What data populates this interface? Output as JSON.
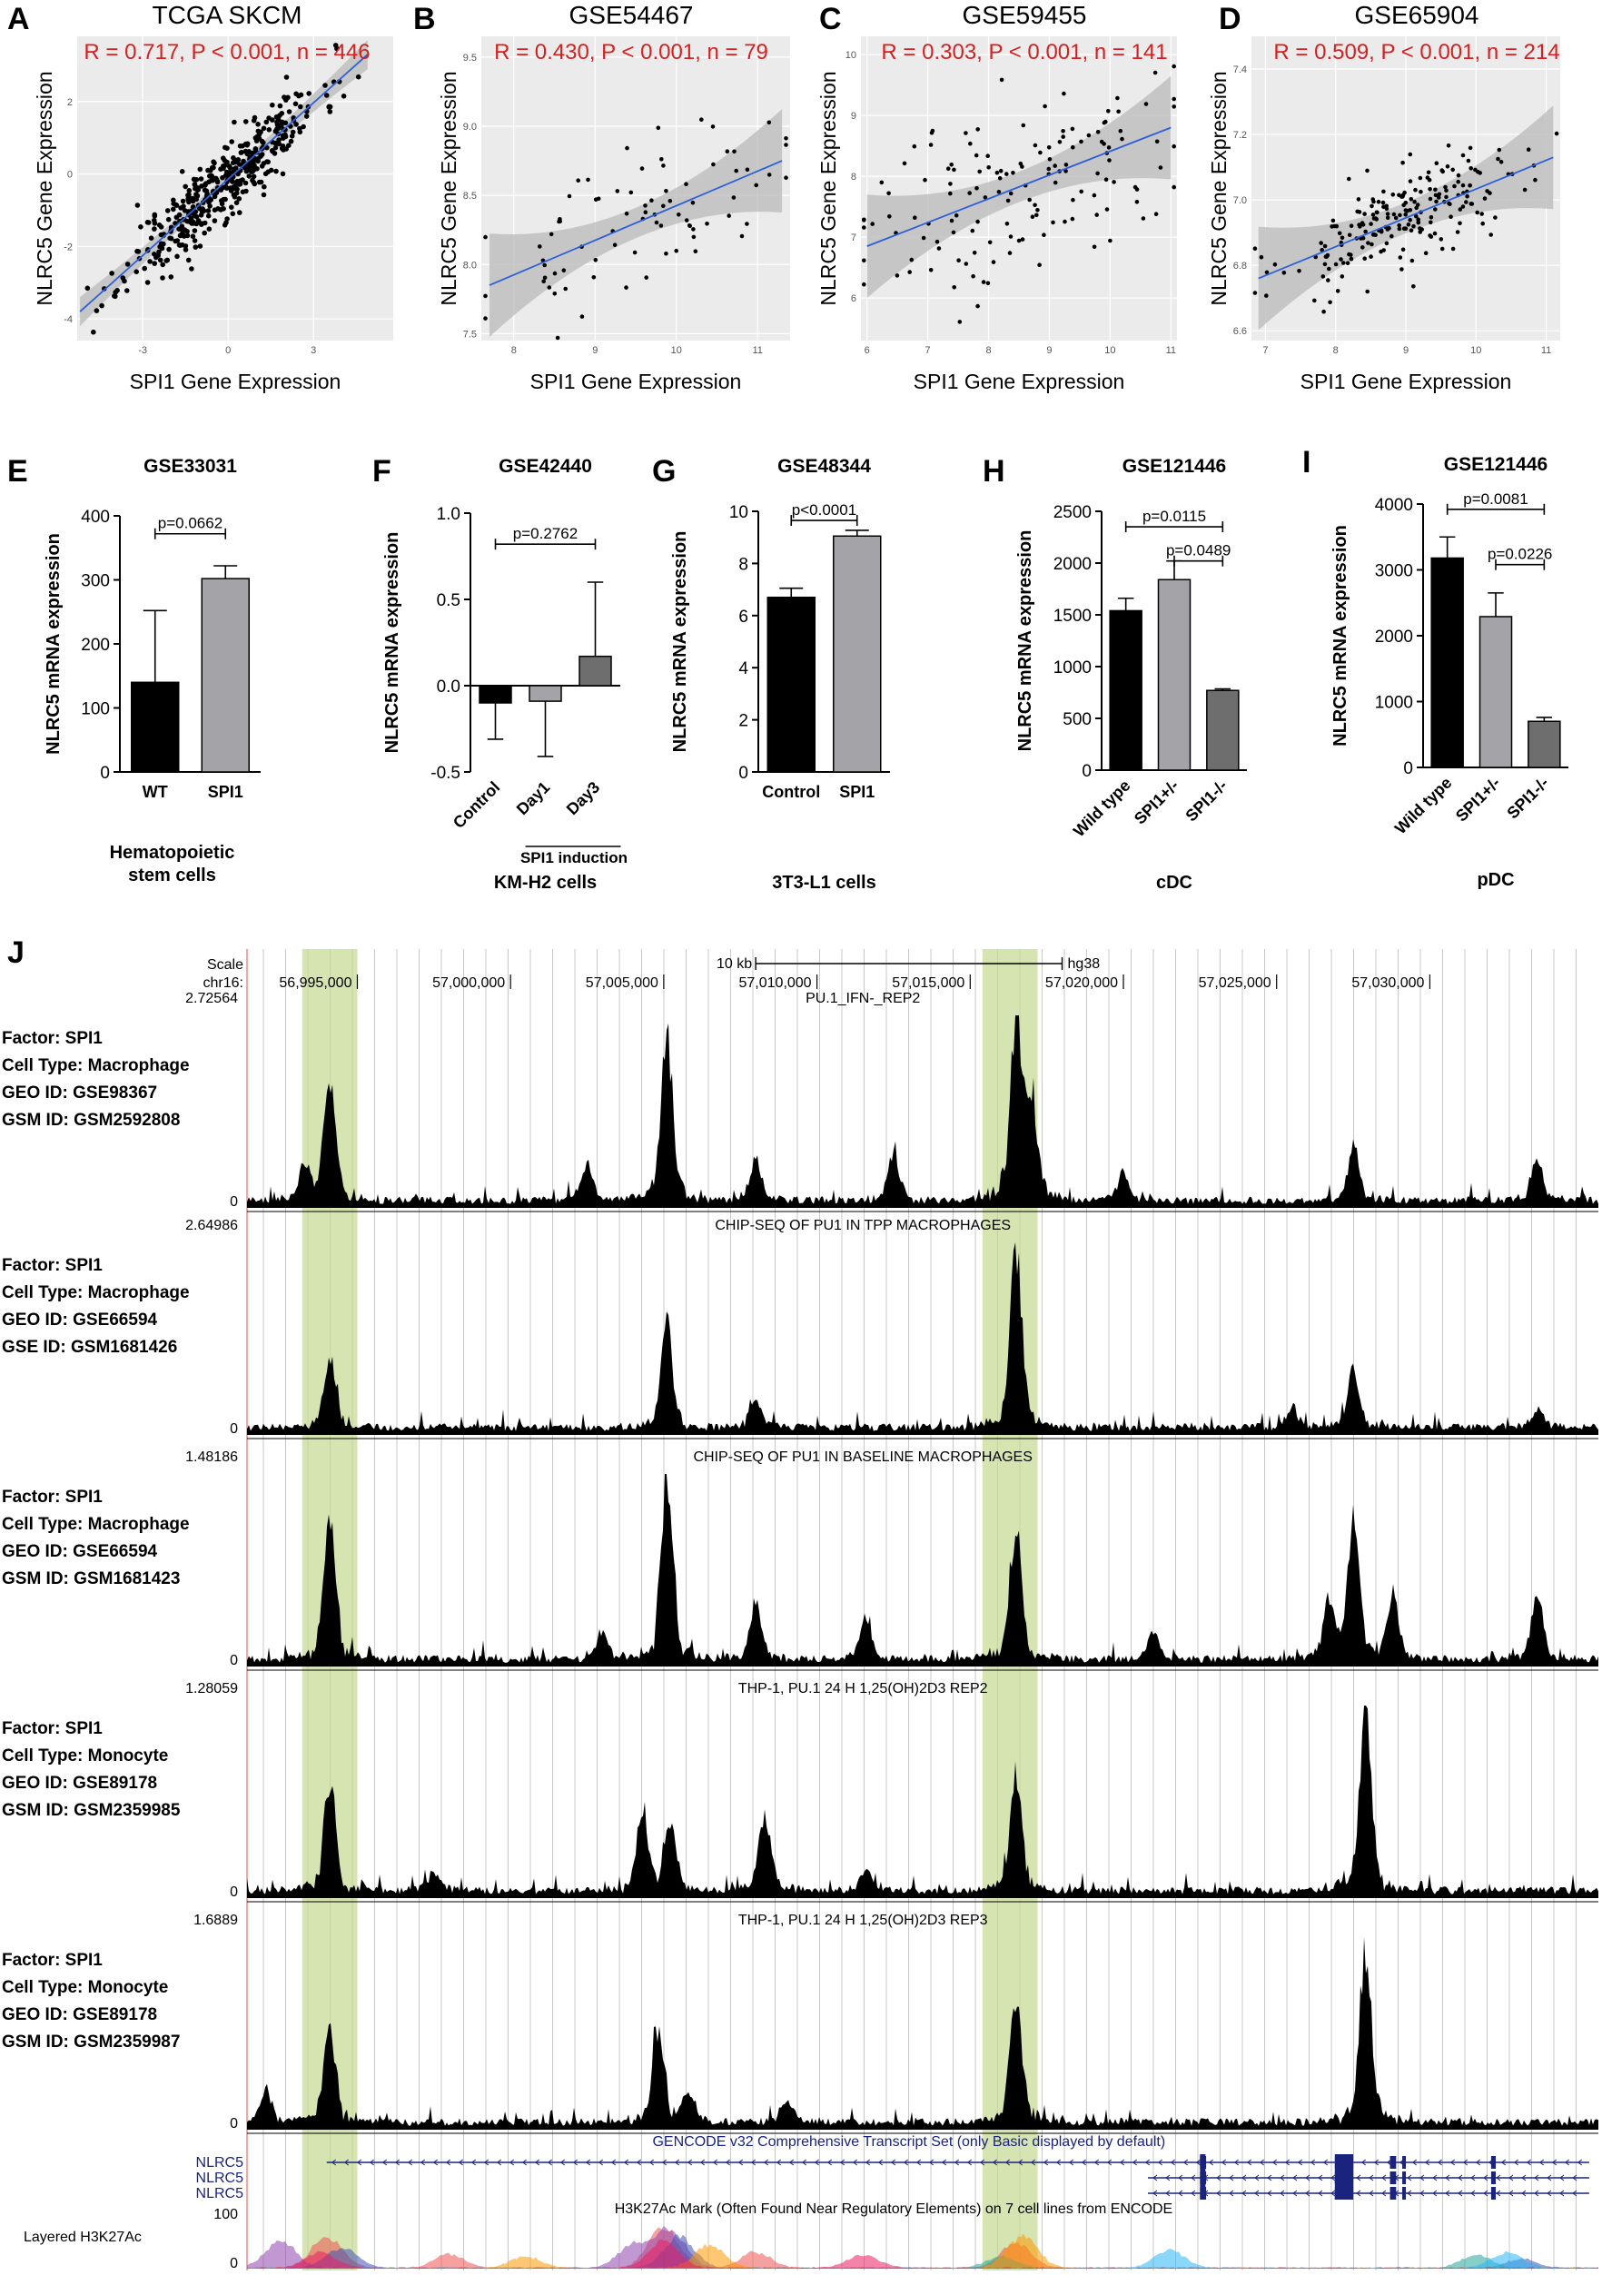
{
  "panels": {
    "A": "A",
    "B": "B",
    "C": "C",
    "D": "D",
    "E": "E",
    "F": "F",
    "G": "G",
    "H": "H",
    "I": "I",
    "J": "J"
  },
  "chart_data": [
    {
      "id": "A",
      "type": "scatter",
      "title": "TCGA SKCM",
      "stat": "R = 0.717, P < 0.001, n = 446",
      "xlabel": "SPI1 Gene Expression",
      "ylabel": "NLRC5 Gene Expression",
      "xlim": [
        -5.3,
        5.8
      ],
      "ylim": [
        -4.6,
        3.8
      ],
      "xticks": [
        "-3",
        "0",
        "3"
      ],
      "xtick_values": [
        -3,
        0,
        3
      ],
      "yticks": [
        "-4",
        "-2",
        "0",
        "2"
      ],
      "ytick_values": [
        -4,
        -2,
        0,
        2
      ],
      "fit": [
        [
          -5.2,
          -3.8
        ],
        [
          4.9,
          3.3
        ]
      ],
      "n_points": 446,
      "seed": 11,
      "spread_x": 1.7,
      "noise": 0.95
    },
    {
      "id": "B",
      "type": "scatter",
      "title": "GSE54467",
      "stat": "R = 0.430, P < 0.001, n = 79",
      "xlabel": "SPI1 Gene Expression",
      "ylabel": "NLRC5 Gene Expression",
      "xlim": [
        7.6,
        11.4
      ],
      "ylim": [
        7.45,
        9.65
      ],
      "xticks": [
        "8",
        "9",
        "10",
        "11"
      ],
      "xtick_values": [
        8,
        9,
        10,
        11
      ],
      "yticks": [
        "7.5",
        "8.0",
        "8.5",
        "9.0",
        "9.5"
      ],
      "ytick_values": [
        7.5,
        8.0,
        8.5,
        9.0,
        9.5
      ],
      "fit": [
        [
          7.7,
          7.85
        ],
        [
          11.3,
          8.75
        ]
      ],
      "n_points": 79,
      "seed": 23,
      "spread_x": 0.9,
      "noise": 0.45
    },
    {
      "id": "C",
      "type": "scatter",
      "title": "GSE59455",
      "stat": "R = 0.303, P < 0.001, n = 141",
      "xlabel": "SPI1 Gene Expression",
      "ylabel": "NLRC5 Gene Expression",
      "xlim": [
        5.9,
        11.1
      ],
      "ylim": [
        5.3,
        10.3
      ],
      "xticks": [
        "6",
        "7",
        "8",
        "9",
        "10",
        "11"
      ],
      "xtick_values": [
        6,
        7,
        8,
        9,
        10,
        11
      ],
      "yticks": [
        "6",
        "7",
        "8",
        "9",
        "10"
      ],
      "ytick_values": [
        6,
        7,
        8,
        9,
        10
      ],
      "fit": [
        [
          6.0,
          6.85
        ],
        [
          11.0,
          8.8
        ]
      ],
      "n_points": 141,
      "seed": 37,
      "spread_x": 1.3,
      "noise": 1.4
    },
    {
      "id": "D",
      "type": "scatter",
      "title": "GSE65904",
      "stat": "R = 0.509, P < 0.001, n = 214",
      "xlabel": "SPI1 Gene Expression",
      "ylabel": "NLRC5 Gene Expression",
      "xlim": [
        6.8,
        11.2
      ],
      "ylim": [
        6.57,
        7.5
      ],
      "xticks": [
        "7",
        "8",
        "9",
        "10",
        "11"
      ],
      "xtick_values": [
        7,
        8,
        9,
        10,
        11
      ],
      "yticks": [
        "6.6",
        "6.8",
        "7.0",
        "7.2",
        "7.4"
      ],
      "ytick_values": [
        6.6,
        6.8,
        7.0,
        7.2,
        7.4
      ],
      "fit": [
        [
          6.9,
          6.76
        ],
        [
          11.1,
          7.13
        ]
      ],
      "n_points": 214,
      "seed": 53,
      "spread_x": 0.9,
      "noise": 0.14
    },
    {
      "id": "E",
      "type": "bar",
      "title": "GSE33031",
      "ylabel": "NLRC5 mRNA expression",
      "ylim": [
        0,
        400
      ],
      "yticks": [
        0,
        100,
        200,
        300,
        400
      ],
      "categories": [
        "WT",
        "SPI1"
      ],
      "values": [
        140,
        302
      ],
      "errors": [
        112,
        20
      ],
      "colors": [
        "#000000",
        "#a3a3a8"
      ],
      "comparisons": [
        {
          "a": 0,
          "b": 1,
          "label": "p=0.0662",
          "y": 372
        }
      ],
      "group_label": "",
      "cell": "Hematopoietic stem cells",
      "cell_lines": [
        "Hematopoietic",
        "stem cells"
      ],
      "rotated_labels": false
    },
    {
      "id": "F",
      "type": "bar",
      "title": "GSE42440",
      "ylabel": "NLRC5 mRNA expression",
      "ylim": [
        -0.5,
        1.0
      ],
      "yticks": [
        "-0.5",
        "0.0",
        "0.5",
        "1.0"
      ],
      "ytick_values": [
        -0.5,
        0.0,
        0.5,
        1.0
      ],
      "categories": [
        "Control",
        "Day1",
        "Day3"
      ],
      "values": [
        -0.1,
        -0.09,
        0.17
      ],
      "errors": [
        0.21,
        0.32,
        0.43
      ],
      "colors": [
        "#000000",
        "#a3a3a8",
        "#6e6e6e"
      ],
      "comparisons": [
        {
          "a": 0,
          "b": 2,
          "label": "p=0.2762",
          "y": 0.82
        }
      ],
      "group_label": "SPI1 induction",
      "cell": "KM-H2 cells",
      "cell_lines": [
        "KM-H2 cells"
      ],
      "rotated_labels": true
    },
    {
      "id": "G",
      "type": "bar",
      "title": "GSE48344",
      "ylabel": "NLRC5 mRNA expression",
      "ylim": [
        0,
        10
      ],
      "yticks": [
        0,
        2,
        4,
        6,
        8,
        10
      ],
      "categories": [
        "Control",
        "SPI1"
      ],
      "values": [
        6.7,
        9.05
      ],
      "errors": [
        0.35,
        0.22
      ],
      "colors": [
        "#000000",
        "#a3a3a8"
      ],
      "comparisons": [
        {
          "a": 0,
          "b": 1,
          "label": "p<0.0001",
          "y": 9.65
        }
      ],
      "group_label": "",
      "cell": "3T3-L1 cells",
      "cell_lines": [
        "3T3-L1 cells"
      ],
      "rotated_labels": false
    },
    {
      "id": "H",
      "type": "bar",
      "title": "GSE121446",
      "ylabel": "NLRC5 mRNA expression",
      "ylim": [
        0,
        2500
      ],
      "yticks": [
        0,
        500,
        1000,
        1500,
        2000,
        2500
      ],
      "categories": [
        "Wild type",
        "SPI1+/-",
        "SPI1-/-"
      ],
      "values": [
        1540,
        1840,
        770
      ],
      "errors": [
        120,
        180,
        15
      ],
      "colors": [
        "#000000",
        "#a3a3a8",
        "#6e6e6e"
      ],
      "comparisons": [
        {
          "a": 0,
          "b": 2,
          "label": "p=0.0115",
          "y": 2350
        },
        {
          "a": 1,
          "b": 2,
          "label": "p=0.0489",
          "y": 2020
        }
      ],
      "group_label": "",
      "cell": "cDC",
      "cell_lines": [
        "cDC"
      ],
      "rotated_labels": true
    },
    {
      "id": "I",
      "type": "bar",
      "title": "GSE121446",
      "ylabel": "NLRC5 mRNA expression",
      "ylim": [
        0,
        4000
      ],
      "yticks": [
        0,
        1000,
        2000,
        3000,
        4000
      ],
      "categories": [
        "Wild type",
        "SPI1+/-",
        "SPI1-/-"
      ],
      "values": [
        3180,
        2290,
        700
      ],
      "errors": [
        320,
        360,
        60
      ],
      "colors": [
        "#000000",
        "#a3a3a8",
        "#6e6e6e"
      ],
      "comparisons": [
        {
          "a": 0,
          "b": 2,
          "label": "p=0.0081",
          "y": 3920
        },
        {
          "a": 1,
          "b": 2,
          "label": "p=0.0226",
          "y": 3080
        }
      ],
      "group_label": "",
      "cell": "pDC",
      "cell_lines": [
        "pDC"
      ],
      "rotated_labels": true
    }
  ],
  "browser": {
    "scale_label": "Scale",
    "chrom_label": "chr16:",
    "scale_bar": "10 kb",
    "assembly": "hg38",
    "coords": [
      "56,995,000",
      "57,000,000",
      "57,005,000",
      "57,010,000",
      "57,015,000",
      "57,020,000",
      "57,025,000",
      "57,030,000"
    ],
    "coord_values": [
      56995000,
      57000000,
      57005000,
      57010000,
      57015000,
      57020000,
      57025000,
      57030000
    ],
    "genome_range": [
      56991400,
      57035500
    ],
    "highlights": [
      [
        56993200,
        56995000
      ],
      [
        57015400,
        57017200
      ]
    ],
    "tracks": [
      {
        "ymax": "2.72564",
        "ymin": "0",
        "title": "PU.1_IFN-_REP2",
        "factor": "Factor: SPI1",
        "cell_type": "Cell Type: Macrophage",
        "geo": "GEO ID: GSE98367",
        "gsm": "GSM ID: GSM2592808",
        "peaks": [
          [
            56994100,
            0.68
          ],
          [
            57005100,
            0.92
          ],
          [
            57016500,
            1.0
          ],
          [
            56993300,
            0.18
          ],
          [
            57002500,
            0.2
          ],
          [
            57008000,
            0.22
          ],
          [
            57012500,
            0.25
          ],
          [
            57017000,
            0.55
          ],
          [
            57027500,
            0.3
          ],
          [
            57033500,
            0.22
          ],
          [
            57020000,
            0.15
          ]
        ]
      },
      {
        "ymax": "2.64986",
        "ymin": "0",
        "title": "CHIP-SEQ OF PU1 IN TPP MACROPHAGES",
        "factor": "Factor: SPI1",
        "cell_type": "Cell Type: Macrophage",
        "geo": "GEO ID: GSE66594",
        "gsm": "GSE ID: GSM1681426",
        "peaks": [
          [
            56994100,
            0.38
          ],
          [
            57005100,
            0.58
          ],
          [
            57008000,
            0.15
          ],
          [
            57016500,
            1.0
          ],
          [
            57027500,
            0.3
          ],
          [
            57025500,
            0.12
          ],
          [
            57033500,
            0.1
          ]
        ]
      },
      {
        "ymax": "1.48186",
        "ymin": "0",
        "title": "CHIP-SEQ OF PU1 IN BASELINE MACROPHAGES",
        "factor": "Factor: SPI1",
        "cell_type": "Cell Type: Macrophage",
        "geo": "GEO ID: GSE66594",
        "gsm": "GSM ID: GSM1681423",
        "peaks": [
          [
            56994100,
            0.8
          ],
          [
            57005100,
            1.0
          ],
          [
            57008000,
            0.3
          ],
          [
            57011600,
            0.22
          ],
          [
            57016500,
            0.72
          ],
          [
            57027500,
            0.78
          ],
          [
            57026700,
            0.3
          ],
          [
            57028800,
            0.35
          ],
          [
            57033500,
            0.35
          ],
          [
            57003000,
            0.15
          ],
          [
            57021000,
            0.15
          ]
        ]
      },
      {
        "ymax": "1.28059",
        "ymin": "0",
        "title": "THP-1, PU.1 24 H 1,25(OH)2D3 REP2",
        "factor": "Factor: SPI1",
        "cell_type": "Cell Type: Monocyte",
        "geo": "GEO ID: GSE89178",
        "gsm": "GSM ID: GSM2359985",
        "peaks": [
          [
            56994100,
            0.58
          ],
          [
            57004300,
            0.42
          ],
          [
            57005200,
            0.38
          ],
          [
            57008300,
            0.42
          ],
          [
            57016500,
            0.62
          ],
          [
            57027900,
            1.0
          ],
          [
            57011600,
            0.12
          ],
          [
            56997500,
            0.1
          ]
        ]
      },
      {
        "ymax": "1.6889",
        "ymin": "0",
        "title": "THP-1, PU.1 24 H 1,25(OH)2D3 REP3",
        "factor": "Factor: SPI1",
        "cell_type": "Cell Type: Monocyte",
        "geo": "GEO ID: GSE89178",
        "gsm": "GSM ID: GSM2359987",
        "peaks": [
          [
            56994100,
            0.52
          ],
          [
            57004800,
            0.53
          ],
          [
            57016500,
            0.72
          ],
          [
            57027900,
            1.0
          ],
          [
            56992000,
            0.18
          ],
          [
            57005800,
            0.15
          ],
          [
            57009000,
            0.12
          ]
        ]
      }
    ],
    "gencode_title": "GENCODE v32 Comprehensive Transcript Set (only Basic displayed by default)",
    "transcripts": [
      "NLRC5",
      "NLRC5",
      "NLRC5"
    ],
    "layered_label": "Layered H3K27Ac",
    "layered_max": "100",
    "layered_min": "0",
    "layered_title": "H3K27Ac Mark (Often Found Near Regulatory Elements) on 7 cell lines from ENCODE",
    "layered_colors": [
      "#ef5350",
      "#8e44ad",
      "#3f51b5",
      "#26a69a",
      "#29b6f6",
      "#ff9800",
      "#e91e63"
    ]
  }
}
